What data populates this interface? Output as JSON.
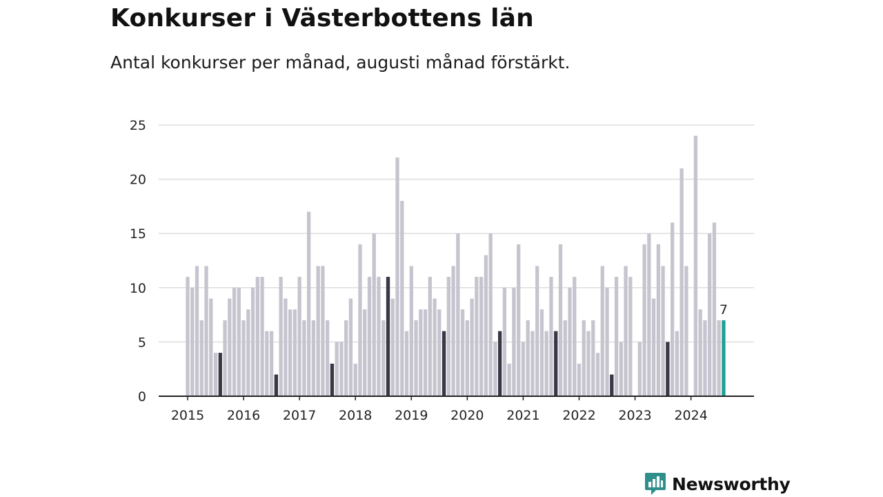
{
  "header": {
    "title": "Konkurser i Västerbottens län",
    "subtitle": "Antal konkurser per månad, augusti månad förstärkt."
  },
  "logo": {
    "text": "Newsworthy",
    "icon": "newsworthy-logo-icon",
    "color": "#2f8f8b"
  },
  "colors": {
    "bar": "#c6c5cf",
    "august": "#383846",
    "current": "#1ea096",
    "grid": "#dddddd",
    "axis": "#222222"
  },
  "chart_data": {
    "type": "bar",
    "title": "Konkurser i Västerbottens län",
    "subtitle": "Antal konkurser per månad, augusti månad förstärkt.",
    "xlabel": "",
    "ylabel": "",
    "ylim": [
      0,
      25
    ],
    "yticks": [
      0,
      5,
      10,
      15,
      20,
      25
    ],
    "xticks": [
      "2015",
      "2016",
      "2017",
      "2018",
      "2019",
      "2020",
      "2021",
      "2022",
      "2023",
      "2024"
    ],
    "grid": true,
    "start": "2015-01",
    "end": "2024-08",
    "highlight": "august bars darker; latest month (2024-08) teal with value label",
    "series": [
      {
        "values": [
          11,
          10,
          12,
          7,
          12,
          9,
          4,
          4,
          7,
          9,
          10,
          10,
          7,
          8,
          10,
          11,
          11,
          6,
          6,
          2,
          11,
          9,
          8,
          8,
          11,
          7,
          17,
          7,
          12,
          12,
          7,
          3,
          5,
          5,
          7,
          9,
          3,
          14,
          8,
          11,
          15,
          11,
          7,
          11,
          9,
          22,
          18,
          6,
          12,
          7,
          8,
          8,
          11,
          9,
          8,
          6,
          11,
          12,
          15,
          8,
          7,
          9,
          11,
          11,
          13,
          15,
          5,
          6,
          10,
          3,
          10,
          14,
          5,
          7,
          6,
          12,
          8,
          6,
          11,
          6,
          14,
          7,
          10,
          11,
          3,
          7,
          6,
          7,
          4,
          12,
          10,
          2,
          11,
          5,
          12,
          11,
          0,
          5,
          14,
          15,
          9,
          14,
          12,
          5,
          16,
          6,
          21,
          12,
          0,
          24,
          8,
          7,
          15,
          16,
          7,
          7
        ]
      }
    ],
    "value_labels": [
      "7"
    ]
  }
}
